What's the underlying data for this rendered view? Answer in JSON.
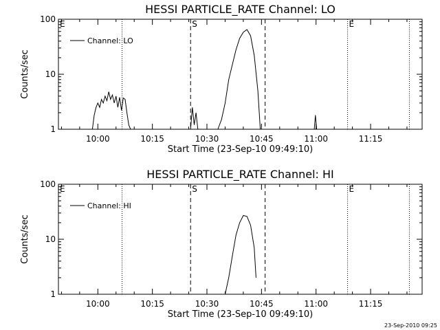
{
  "footer": {
    "timestamp": "23-Sep-2010 09:25"
  },
  "chart_data": [
    {
      "type": "line",
      "title": "HESSI PARTICLE_RATE Channel: LO",
      "xlabel": "Start Time (23-Sep-10 09:49:10)",
      "ylabel": "Counts/sec",
      "yscale": "log",
      "ylim": [
        1,
        100
      ],
      "xlim": [
        "09:49:10",
        "11:29:10"
      ],
      "x_ticks": [
        "10:00",
        "10:15",
        "10:30",
        "10:45",
        "11:00",
        "11:15"
      ],
      "y_ticks": [
        "1",
        "10",
        "100"
      ],
      "legend": {
        "position": "top-left",
        "entries": [
          "Channel: LO"
        ]
      },
      "markers": [
        {
          "time": "09:49:10",
          "label": "E",
          "style": "none"
        },
        {
          "time": "10:06:40",
          "label": "",
          "style": "dotted"
        },
        {
          "time": "10:25:30",
          "label": "S",
          "style": "dashed"
        },
        {
          "time": "10:46:00",
          "label": "",
          "style": "dashed"
        },
        {
          "time": "11:08:40",
          "label": "E",
          "style": "dotted"
        },
        {
          "time": "11:25:40",
          "label": "",
          "style": "dotted"
        }
      ],
      "series": [
        {
          "name": "Channel: LO",
          "segments": [
            [
              [
                "09:58:30",
                1
              ],
              [
                "09:59:00",
                1.8
              ],
              [
                "09:59:30",
                2.5
              ],
              [
                "10:00:00",
                3
              ],
              [
                "10:00:30",
                2.5
              ],
              [
                "10:01:00",
                3.5
              ],
              [
                "10:01:30",
                3
              ],
              [
                "10:02:00",
                4
              ],
              [
                "10:02:30",
                3.3
              ],
              [
                "10:03:00",
                4.8
              ],
              [
                "10:03:30",
                3.5
              ],
              [
                "10:04:00",
                4.2
              ],
              [
                "10:04:30",
                3
              ],
              [
                "10:05:00",
                4
              ],
              [
                "10:05:30",
                2.5
              ],
              [
                "10:06:00",
                3.8
              ],
              [
                "10:06:30",
                2.2
              ],
              [
                "10:07:00",
                3.7
              ],
              [
                "10:07:30",
                3.5
              ],
              [
                "10:08:00",
                2
              ],
              [
                "10:08:30",
                1.2
              ],
              [
                "10:09:00",
                1
              ]
            ],
            [
              [
                "10:25:30",
                1
              ],
              [
                "10:26:00",
                2.5
              ],
              [
                "10:26:30",
                1.2
              ],
              [
                "10:27:00",
                2
              ],
              [
                "10:27:30",
                1
              ]
            ],
            [
              [
                "10:33:00",
                1
              ],
              [
                "10:34:00",
                1.5
              ],
              [
                "10:35:00",
                3
              ],
              [
                "10:36:00",
                8
              ],
              [
                "10:37:00",
                15
              ],
              [
                "10:38:00",
                28
              ],
              [
                "10:39:00",
                45
              ],
              [
                "10:40:00",
                58
              ],
              [
                "10:41:00",
                65
              ],
              [
                "10:42:00",
                50
              ],
              [
                "10:43:00",
                22
              ],
              [
                "10:44:00",
                5
              ],
              [
                "10:44:40",
                1
              ]
            ],
            [
              [
                "10:59:30",
                1
              ],
              [
                "10:59:50",
                1.8
              ],
              [
                "11:00:10",
                1
              ]
            ]
          ]
        }
      ]
    },
    {
      "type": "line",
      "title": "HESSI PARTICLE_RATE Channel: HI",
      "xlabel": "Start Time (23-Sep-10 09:49:10)",
      "ylabel": "Counts/sec",
      "yscale": "log",
      "ylim": [
        1,
        100
      ],
      "xlim": [
        "09:49:10",
        "11:29:10"
      ],
      "x_ticks": [
        "10:00",
        "10:15",
        "10:30",
        "10:45",
        "11:00",
        "11:15"
      ],
      "y_ticks": [
        "1",
        "10",
        "100"
      ],
      "legend": {
        "position": "top-left",
        "entries": [
          "Channel: HI"
        ]
      },
      "markers": [
        {
          "time": "09:49:10",
          "label": "E",
          "style": "none"
        },
        {
          "time": "10:06:40",
          "label": "",
          "style": "dotted"
        },
        {
          "time": "10:25:30",
          "label": "S",
          "style": "dashed"
        },
        {
          "time": "10:46:00",
          "label": "",
          "style": "dashed"
        },
        {
          "time": "11:08:40",
          "label": "E",
          "style": "dotted"
        },
        {
          "time": "11:25:40",
          "label": "",
          "style": "dotted"
        }
      ],
      "series": [
        {
          "name": "Channel: HI",
          "segments": [
            [
              [
                "10:35:00",
                1
              ],
              [
                "10:36:00",
                2
              ],
              [
                "10:37:00",
                5
              ],
              [
                "10:38:00",
                12
              ],
              [
                "10:39:00",
                20
              ],
              [
                "10:40:00",
                27
              ],
              [
                "10:41:00",
                26
              ],
              [
                "10:42:00",
                18
              ],
              [
                "10:43:00",
                7
              ],
              [
                "10:43:30",
                2
              ]
            ]
          ]
        }
      ]
    }
  ]
}
